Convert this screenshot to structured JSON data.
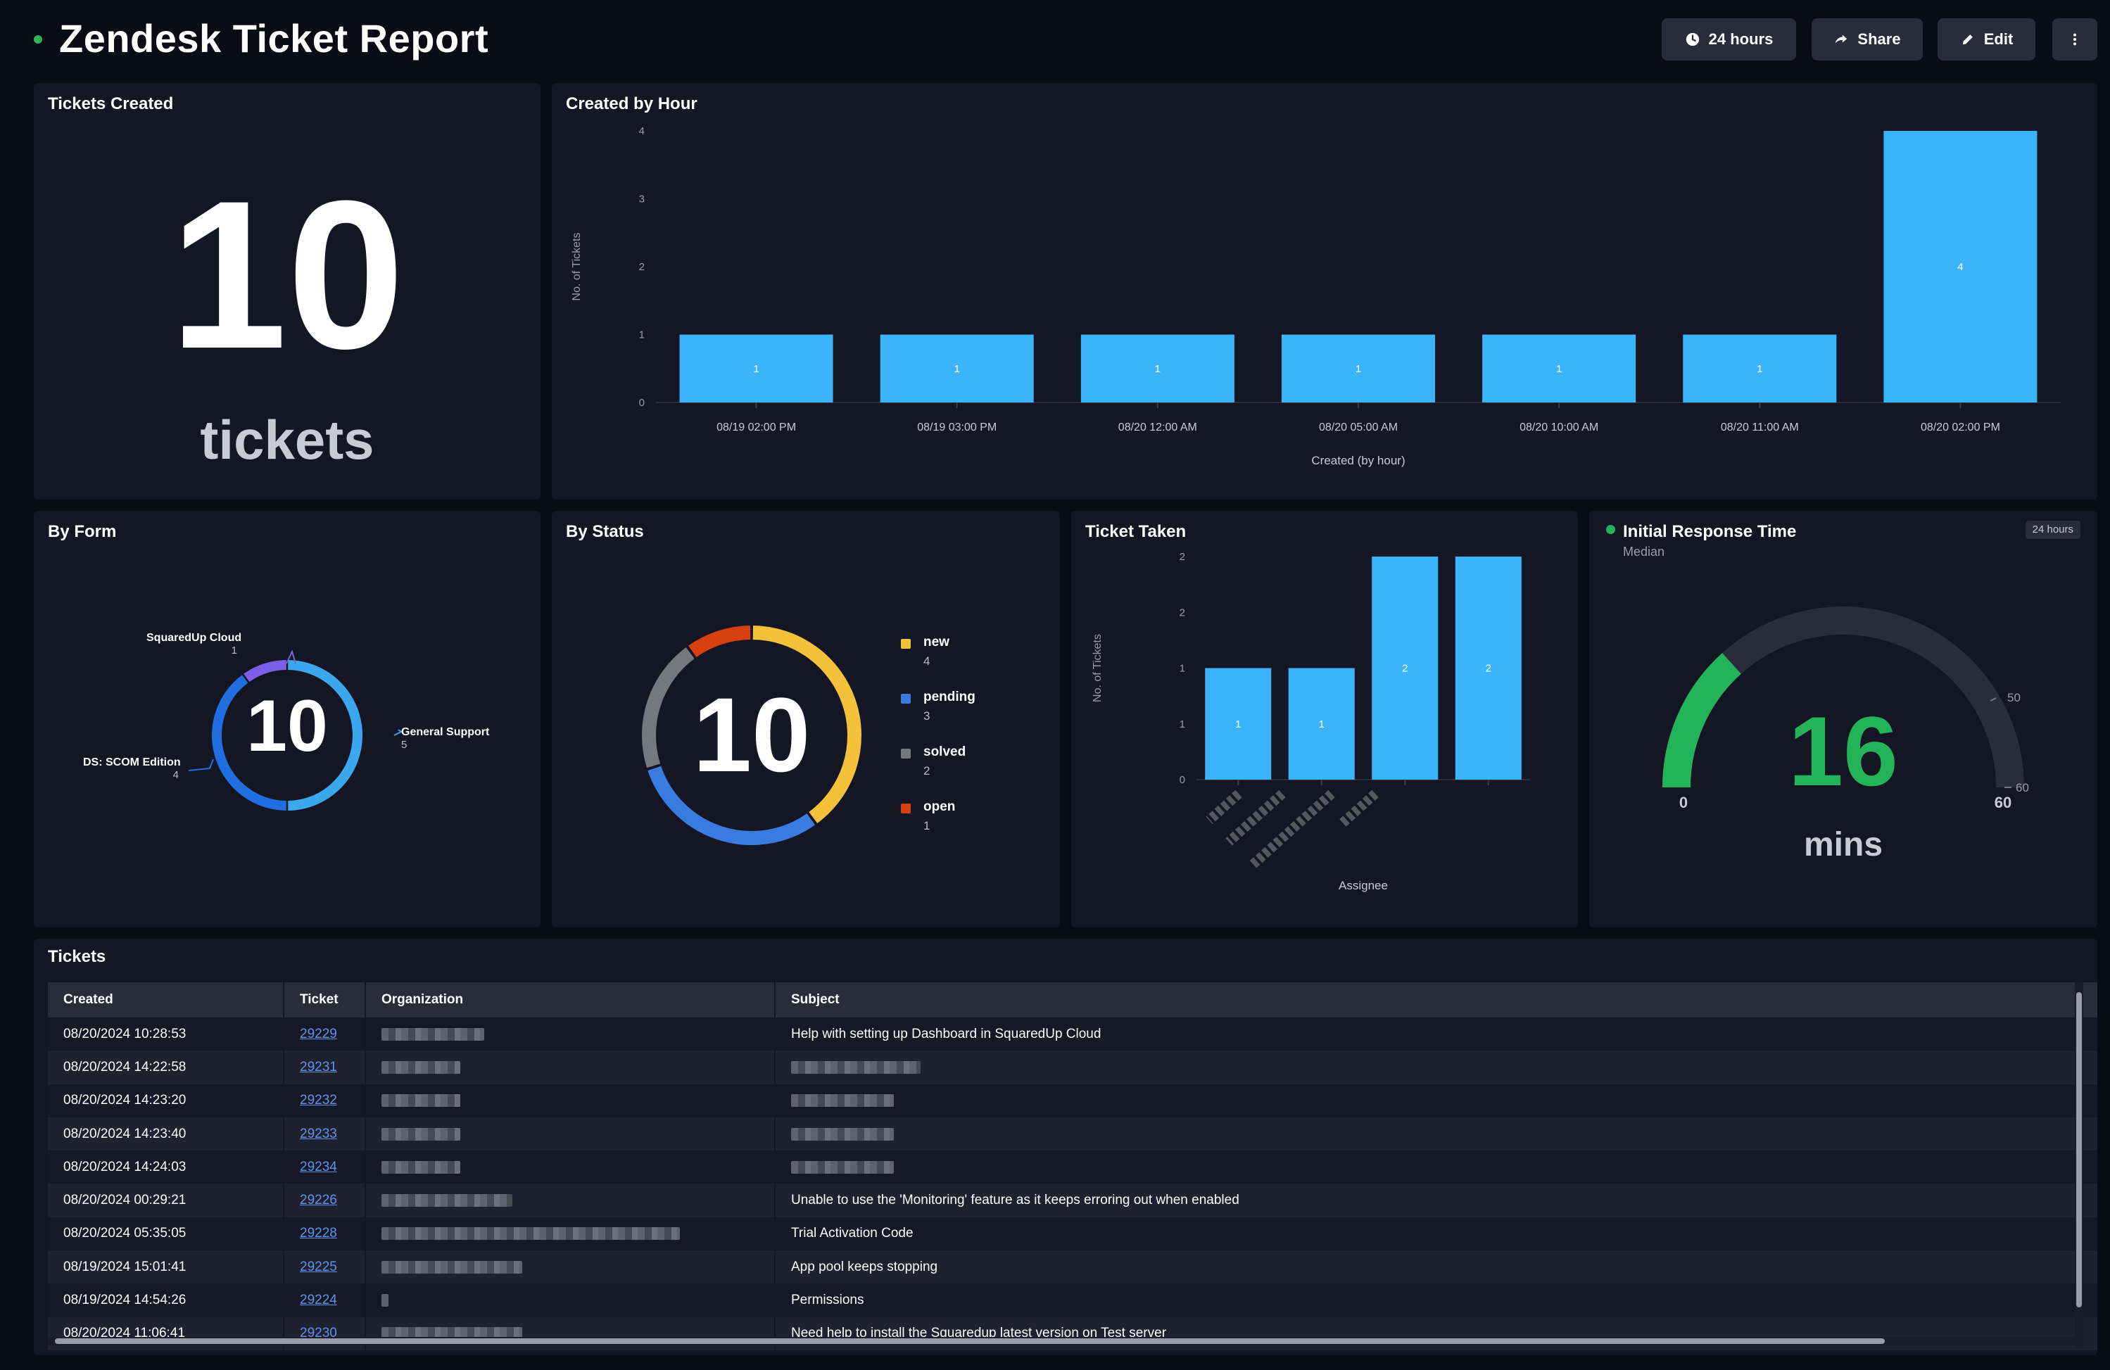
{
  "header": {
    "title": "Zendesk Ticket Report",
    "buttons": {
      "timeframe": "24 hours",
      "share": "Share",
      "edit": "Edit"
    }
  },
  "tickets_created": {
    "title": "Tickets Created",
    "value": "10",
    "unit": "tickets"
  },
  "created_by_hour": {
    "title": "Created by Hour",
    "chart_data": {
      "type": "bar",
      "categories": [
        "08/19 02:00 PM",
        "08/19 03:00 PM",
        "08/20 12:00 AM",
        "08/20 05:00 AM",
        "08/20 10:00 AM",
        "08/20 11:00 AM",
        "08/20 02:00 PM"
      ],
      "values": [
        1,
        1,
        1,
        1,
        1,
        1,
        4
      ],
      "xlabel": "Created (by hour)",
      "ylabel": "No. of Tickets",
      "ylim": [
        0,
        4
      ],
      "yticks": [
        "0",
        "1",
        "2",
        "3",
        "4"
      ],
      "color": "#3cb4fb"
    }
  },
  "by_form": {
    "title": "By Form",
    "center": "10",
    "chart_data": {
      "type": "pie",
      "labels": [
        "General Support",
        "DS: SCOM Edition",
        "SquaredUp Cloud"
      ],
      "values": [
        5,
        4,
        1
      ],
      "colors": [
        "#3aa7ee",
        "#1f6fe0",
        "#7c5fe6"
      ]
    }
  },
  "by_status": {
    "title": "By Status",
    "center": "10",
    "chart_data": {
      "type": "pie",
      "labels": [
        "new",
        "pending",
        "solved",
        "open"
      ],
      "values": [
        4,
        3,
        2,
        1
      ],
      "colors": [
        "#f3c13a",
        "#3a7be0",
        "#76777f",
        "#d9400f"
      ]
    }
  },
  "ticket_taken": {
    "title": "Ticket Taken",
    "chart_data": {
      "type": "bar",
      "categories": [
        "",
        "",
        "",
        ""
      ],
      "values": [
        1,
        1,
        2,
        2
      ],
      "xlabel": "Assignee",
      "ylabel": "No. of Tickets",
      "ylim": [
        0,
        2
      ],
      "yticks": [
        "0",
        "1",
        "1",
        "2",
        "2"
      ],
      "color": "#3cb4fb"
    }
  },
  "initial_response": {
    "title": "Initial Response Time",
    "subtitle": "Median",
    "badge": "24 hours",
    "value": "16",
    "unit": "mins",
    "min": "0",
    "max": "60",
    "tick_50": "50",
    "tick_60": "60",
    "gauge_fraction": 0.2667,
    "color": "#23b45a"
  },
  "tickets_table": {
    "title": "Tickets",
    "columns": [
      "Created",
      "Ticket",
      "Organization",
      "Subject"
    ],
    "rows": [
      {
        "created": "08/20/2024 10:28:53",
        "ticket": "29229",
        "subject": "Help with setting up Dashboard in SquaredUp Cloud"
      },
      {
        "created": "08/20/2024 14:22:58",
        "ticket": "29231",
        "subject": ""
      },
      {
        "created": "08/20/2024 14:23:20",
        "ticket": "29232",
        "subject": ""
      },
      {
        "created": "08/20/2024 14:23:40",
        "ticket": "29233",
        "subject": ""
      },
      {
        "created": "08/20/2024 14:24:03",
        "ticket": "29234",
        "subject": ""
      },
      {
        "created": "08/20/2024 00:29:21",
        "ticket": "29226",
        "subject": "Unable to use the 'Monitoring' feature as it keeps erroring out when enabled"
      },
      {
        "created": "08/20/2024 05:35:05",
        "ticket": "29228",
        "subject": "Trial Activation Code"
      },
      {
        "created": "08/19/2024 15:01:41",
        "ticket": "29225",
        "subject": "App pool keeps stopping"
      },
      {
        "created": "08/19/2024 14:54:26",
        "ticket": "29224",
        "subject": "Permissions"
      },
      {
        "created": "08/20/2024 11:06:41",
        "ticket": "29230",
        "subject": "Need help to install the Squaredup latest version on Test server"
      }
    ]
  }
}
